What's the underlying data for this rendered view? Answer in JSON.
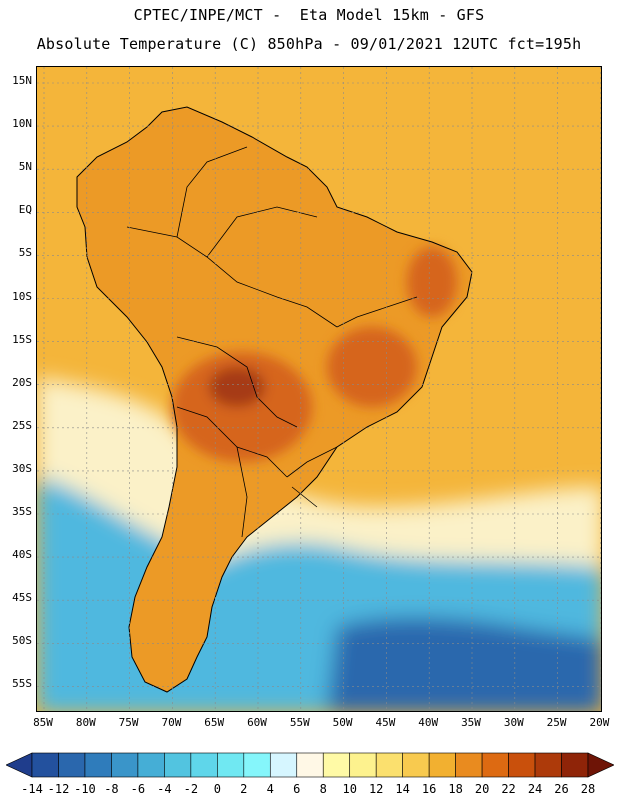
{
  "title": {
    "line1": "CPTEC/INPE/MCT -  Eta Model 15km - GFS",
    "line2": "Absolute Temperature (C) 850hPa - 09/01/2021 12UTC fct=195h"
  },
  "axes": {
    "lat_labels": [
      "15N",
      "10N",
      "5N",
      "EQ",
      "5S",
      "10S",
      "15S",
      "20S",
      "25S",
      "30S",
      "35S",
      "40S",
      "45S",
      "50S",
      "55S"
    ],
    "lon_labels": [
      "85W",
      "80W",
      "75W",
      "70W",
      "65W",
      "60W",
      "55W",
      "50W",
      "45W",
      "40W",
      "35W",
      "30W",
      "25W",
      "20W"
    ]
  },
  "legend": {
    "labels": [
      "-14",
      "-12",
      "-10",
      "-8",
      "-6",
      "-4",
      "-2",
      "0",
      "2",
      "4",
      "6",
      "8",
      "10",
      "12",
      "14",
      "16",
      "18",
      "20",
      "22",
      "24",
      "26",
      "28"
    ],
    "colors": [
      "#1f3d8c",
      "#23519e",
      "#2a67ad",
      "#2f7cbb",
      "#3a95c9",
      "#45aed6",
      "#52c4e0",
      "#5fd6ea",
      "#70e8f2",
      "#85f6fb",
      "#d6f6ff",
      "#fff8e6",
      "#fffaa6",
      "#fdf28e",
      "#fbe06e",
      "#f8ca4f",
      "#f2b030",
      "#e98b1f",
      "#dd6a12",
      "#c9500c",
      "#ad3a0a",
      "#8f2408",
      "#6e1406"
    ]
  },
  "map": {
    "variable": "Absolute Temperature (C) 850hPa",
    "region": "South America",
    "colors": {
      "ocean_warm": "#f4b53a",
      "land_warm": "#ec9a26",
      "land_hot": "#d6651c",
      "hotspot": "#a63a14",
      "cold_south": "#4fb8df",
      "deep_cold": "#2a67ad",
      "cool_band": "#fbf1c8"
    }
  }
}
